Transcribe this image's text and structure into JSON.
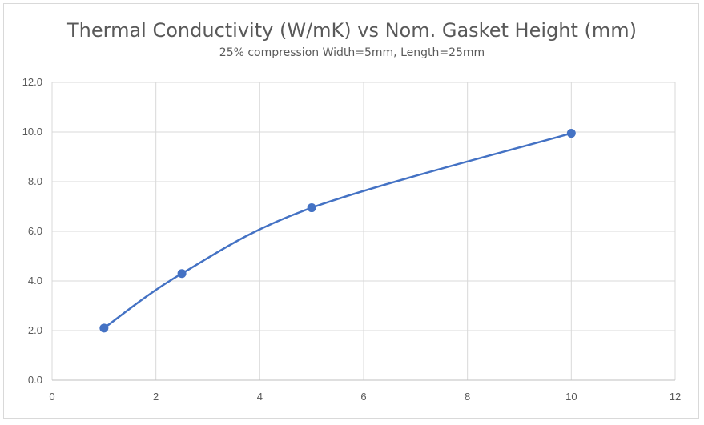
{
  "chart_data": {
    "type": "line",
    "title": "Thermal Conductivity (W/mK) vs Nom. Gasket Height (mm)",
    "subtitle": "25% compression Width=5mm, Length=25mm",
    "xlabel": "",
    "ylabel": "",
    "xlim": [
      0,
      12
    ],
    "ylim": [
      0,
      12
    ],
    "x_ticks": [
      "0",
      "2",
      "4",
      "6",
      "8",
      "10",
      "12"
    ],
    "y_ticks": [
      "0.0",
      "2.0",
      "4.0",
      "6.0",
      "8.0",
      "10.0",
      "12.0"
    ],
    "grid": true,
    "legend": "none",
    "smooth": true,
    "color": "#4472c4",
    "series": [
      {
        "x": [
          1,
          2.5,
          5,
          10
        ],
        "y": [
          2.1,
          4.3,
          6.95,
          9.95
        ]
      }
    ]
  }
}
